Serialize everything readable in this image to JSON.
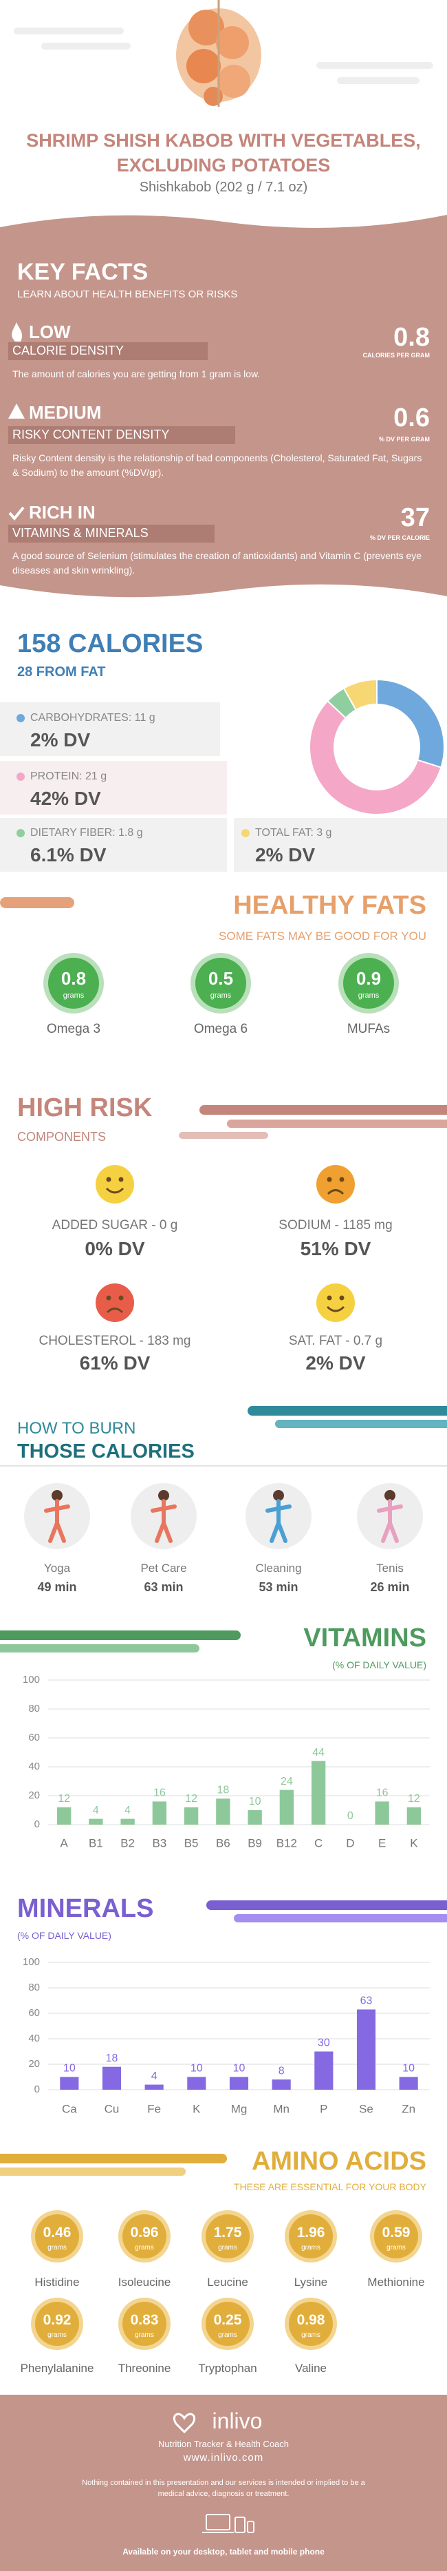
{
  "header": {
    "title": "SHRIMP SHISH KABOB WITH VEGETABLES, EXCLUDING POTATOES",
    "subtitle": "Shishkabob (202 g / 7.1 oz)"
  },
  "key_facts": {
    "title": "KEY FACTS",
    "subtitle": "LEARN ABOUT HEALTH BENEFITS OR RISKS",
    "items": [
      {
        "level": "LOW",
        "name": "CALORIE DENSITY",
        "value": 0.8,
        "unit": "CALORIES PER GRAM",
        "description": "The amount of calories you are getting from 1 gram is low."
      },
      {
        "level": "MEDIUM",
        "name": "RISKY CONTENT DENSITY",
        "value": 0.6,
        "unit": "% DV PER GRAM",
        "description": "Risky Content density is the relationship of bad components (Cholesterol, Saturated Fat, Sugars & Sodium) to the amount (%DV/gr)."
      },
      {
        "level": "RICH IN",
        "name": "VITAMINS & MINERALS",
        "value": 37,
        "unit": "% DV PER CALORIE",
        "description": "A good source of Selenium (stimulates the creation of antioxidants) and Vitamin C (prevents eye diseases and skin wrinkling)."
      }
    ]
  },
  "calories": {
    "title": "158 CALORIES",
    "subtitle": "28 FROM FAT",
    "nutrients": [
      {
        "label": "CARBOHYDRATES: 11 g",
        "grams": 11,
        "dv": "2% DV",
        "color": "#6fa8dc"
      },
      {
        "label": "PROTEIN: 21 g",
        "grams": 21,
        "dv": "42% DV",
        "color": "#f4a7c6"
      },
      {
        "label": "DIETARY FIBER: 1.8 g",
        "grams": 1.8,
        "dv": "6.1% DV",
        "color": "#8fcf9f"
      },
      {
        "label": "TOTAL FAT: 3 g",
        "grams": 3,
        "dv": "2% DV",
        "color": "#f7d774"
      }
    ]
  },
  "healthy_fats": {
    "title": "HEALTHY FATS",
    "subtitle": "SOME FATS MAY BE GOOD FOR YOU",
    "unit": "grams",
    "items": [
      {
        "name": "Omega 3",
        "value": 0.8
      },
      {
        "name": "Omega 6",
        "value": 0.5
      },
      {
        "name": "MUFAs",
        "value": 0.9
      }
    ]
  },
  "high_risk": {
    "title": "HIGH RISK",
    "subtitle": "COMPONENTS",
    "items": [
      {
        "label": "ADDED SUGAR - 0 g",
        "dv": "0% DV"
      },
      {
        "label": "SODIUM - 1185 mg",
        "dv": "51% DV"
      },
      {
        "label": "CHOLESTEROL - 183 mg",
        "dv": "61% DV"
      },
      {
        "label": "SAT. FAT - 0.7 g",
        "dv": "2% DV"
      }
    ]
  },
  "burn": {
    "title": "HOW TO BURN",
    "subtitle": "THOSE CALORIES",
    "items": [
      {
        "name": "Yoga",
        "time": "49 min"
      },
      {
        "name": "Pet Care",
        "time": "63 min"
      },
      {
        "name": "Cleaning",
        "time": "53 min"
      },
      {
        "name": "Tenis",
        "time": "26 min"
      }
    ]
  },
  "chart_data": [
    {
      "type": "bar",
      "title": "VITAMINS",
      "subtitle": "(% OF DAILY VALUE)",
      "categories": [
        "A",
        "B1",
        "B2",
        "B3",
        "B5",
        "B6",
        "B9",
        "B12",
        "C",
        "D",
        "E",
        "K"
      ],
      "values": [
        12,
        4,
        4,
        16,
        12,
        18,
        10,
        24,
        44,
        0,
        16,
        12
      ],
      "color": "#8dc89b",
      "ylim": [
        0,
        100
      ],
      "yticks": [
        0,
        20,
        40,
        60,
        80,
        100
      ],
      "grid": true
    },
    {
      "type": "bar",
      "title": "MINERALS",
      "subtitle": "(% OF DAILY VALUE)",
      "categories": [
        "Ca",
        "Cu",
        "Fe",
        "K",
        "Mg",
        "Mn",
        "P",
        "Se",
        "Zn"
      ],
      "values": [
        10,
        18,
        4,
        10,
        10,
        8,
        30,
        63,
        10
      ],
      "color": "#8569e3",
      "ylim": [
        0,
        100
      ],
      "yticks": [
        0,
        20,
        40,
        60,
        80,
        100
      ],
      "grid": true
    }
  ],
  "amino_acids": {
    "title": "AMINO ACIDS",
    "subtitle": "THESE ARE ESSENTIAL FOR YOUR BODY",
    "unit": "grams",
    "items": [
      {
        "name": "Histidine",
        "value": 0.46
      },
      {
        "name": "Isoleucine",
        "value": 0.96
      },
      {
        "name": "Leucine",
        "value": 1.75
      },
      {
        "name": "Lysine",
        "value": 1.96
      },
      {
        "name": "Methionine",
        "value": 0.59
      },
      {
        "name": "Phenylalanine",
        "value": 0.92
      },
      {
        "name": "Threonine",
        "value": 0.83
      },
      {
        "name": "Tryptophan",
        "value": 0.25
      },
      {
        "name": "Valine",
        "value": 0.98
      }
    ]
  },
  "footer": {
    "brand": "inlivo",
    "tagline": "Nutrition Tracker & Health Coach",
    "url": "www.inlivo.com",
    "disclaimer": "Nothing contained in this presentation and our services is intended or implied to be a medical advice, diagnosis or treatment.",
    "availability": "Available on your desktop, tablet and mobile phone"
  }
}
